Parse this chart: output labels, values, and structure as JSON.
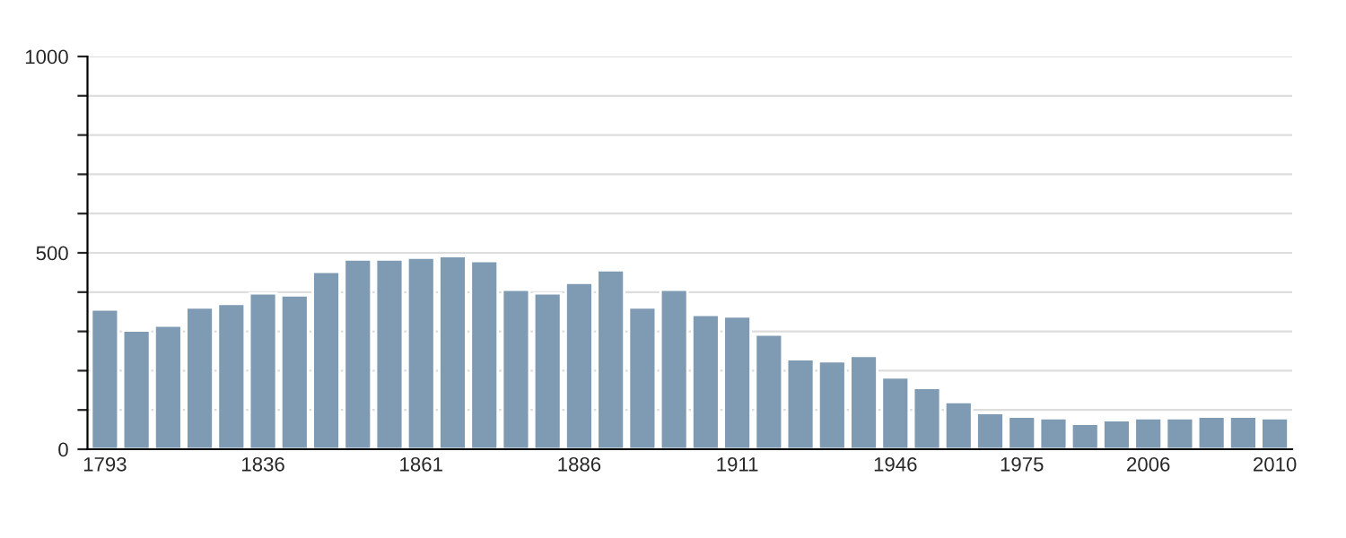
{
  "chart_data": {
    "type": "bar",
    "categories": [
      "1793",
      null,
      null,
      null,
      null,
      "1836",
      null,
      null,
      null,
      null,
      "1861",
      null,
      null,
      null,
      null,
      "1886",
      null,
      null,
      null,
      null,
      "1911",
      null,
      null,
      null,
      null,
      "1946",
      null,
      null,
      null,
      "1975",
      null,
      null,
      null,
      "2006",
      null,
      null,
      null,
      "2010"
    ],
    "values": [
      356,
      302,
      315,
      361,
      370,
      397,
      392,
      452,
      483,
      483,
      488,
      492,
      479,
      406,
      397,
      424,
      456,
      361,
      406,
      342,
      338,
      292,
      229,
      224,
      238,
      183,
      156,
      120,
      92,
      83,
      79,
      65,
      74,
      79,
      79,
      83,
      83,
      79
    ],
    "color": "#7f9ab3",
    "ylim": [
      0,
      1000
    ],
    "yticks": [
      0,
      {
        "value": 100,
        "label": null
      },
      {
        "value": 200,
        "label": null
      },
      {
        "value": 300,
        "label": null
      },
      {
        "value": 400,
        "label": null
      },
      500,
      {
        "value": 600,
        "label": null
      },
      {
        "value": 700,
        "label": null
      },
      {
        "value": 800,
        "label": null
      },
      {
        "value": 900,
        "label": null
      },
      1000
    ],
    "grid": "y"
  }
}
